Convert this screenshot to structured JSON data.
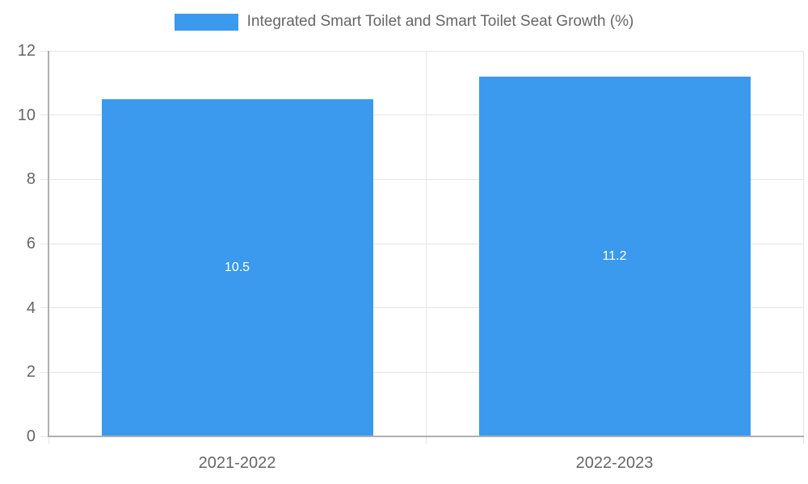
{
  "chart_data": {
    "type": "bar",
    "title": "",
    "xlabel": "",
    "ylabel": "",
    "legend_label": "Integrated Smart Toilet and Smart Toilet Seat Growth (%)",
    "legend_position": "top",
    "categories": [
      "2021-2022",
      "2022-2023"
    ],
    "values": [
      10.5,
      11.2
    ],
    "value_labels": [
      "10.5",
      "11.2"
    ],
    "yticks": [
      0,
      2,
      4,
      6,
      8,
      10,
      12
    ],
    "ylim": [
      0,
      12
    ],
    "grid": true,
    "colors": {
      "bar": "#3B99EE",
      "grid": "#E5E5E5",
      "axis": "#B0B0B0",
      "tick_label": "#666666",
      "value_label": "#FFFFFF",
      "legend_text": "#666666",
      "background": "#FFFFFF"
    }
  }
}
